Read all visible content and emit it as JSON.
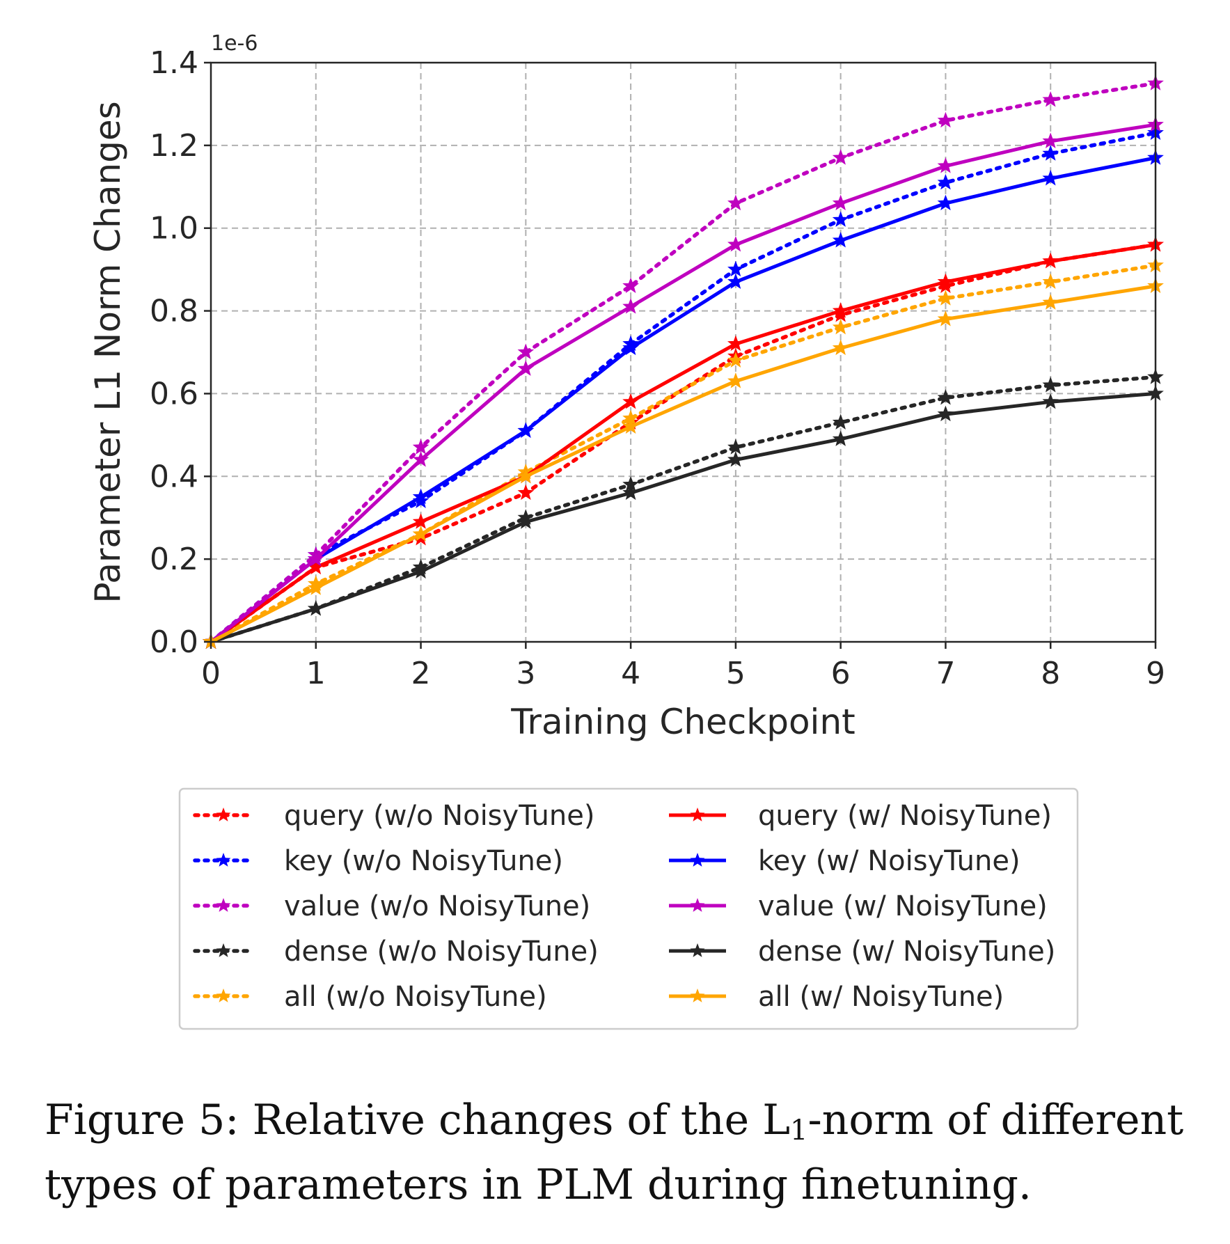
{
  "chart_data": {
    "type": "line",
    "xlabel": "Training Checkpoint",
    "ylabel": "Parameter L1 Norm Changes",
    "y_offset_label": "1e-6",
    "xlim": [
      0,
      9
    ],
    "ylim": [
      0,
      1.4
    ],
    "x": [
      0,
      1,
      2,
      3,
      4,
      5,
      6,
      7,
      8,
      9
    ],
    "x_ticks": [
      "0",
      "1",
      "2",
      "3",
      "4",
      "5",
      "6",
      "7",
      "8",
      "9"
    ],
    "y_ticks": [
      "0.0",
      "0.2",
      "0.4",
      "0.6",
      "0.8",
      "1.0",
      "1.2",
      "1.4"
    ],
    "grid": true,
    "legend_position": "below",
    "series": [
      {
        "name": "query (w/o NoisyTune)",
        "color": "#ff0000",
        "style": "dotted",
        "marker": "star",
        "values": [
          0,
          0.18,
          0.25,
          0.36,
          0.53,
          0.69,
          0.79,
          0.86,
          0.92,
          0.96
        ]
      },
      {
        "name": "key (w/o NoisyTune)",
        "color": "#0000ff",
        "style": "dotted",
        "marker": "star",
        "values": [
          0,
          0.21,
          0.34,
          0.51,
          0.72,
          0.9,
          1.02,
          1.11,
          1.18,
          1.23
        ]
      },
      {
        "name": "value (w/o NoisyTune)",
        "color": "#bf00bf",
        "style": "dotted",
        "marker": "star",
        "values": [
          0,
          0.21,
          0.47,
          0.7,
          0.86,
          1.06,
          1.17,
          1.26,
          1.31,
          1.35
        ]
      },
      {
        "name": "dense (w/o NoisyTune)",
        "color": "#262626",
        "style": "dotted",
        "marker": "star",
        "values": [
          0,
          0.08,
          0.18,
          0.3,
          0.38,
          0.47,
          0.53,
          0.59,
          0.62,
          0.64
        ]
      },
      {
        "name": "all (w/o NoisyTune)",
        "color": "#ffa500",
        "style": "dotted",
        "marker": "star",
        "values": [
          0,
          0.14,
          0.26,
          0.41,
          0.54,
          0.68,
          0.76,
          0.83,
          0.87,
          0.91
        ]
      },
      {
        "name": "query (w/ NoisyTune)",
        "color": "#ff0000",
        "style": "solid",
        "marker": "star",
        "values": [
          0,
          0.18,
          0.29,
          0.4,
          0.58,
          0.72,
          0.8,
          0.87,
          0.92,
          0.96
        ]
      },
      {
        "name": "key (w/ NoisyTune)",
        "color": "#0000ff",
        "style": "solid",
        "marker": "star",
        "values": [
          0,
          0.2,
          0.35,
          0.51,
          0.71,
          0.87,
          0.97,
          1.06,
          1.12,
          1.17
        ]
      },
      {
        "name": "value (w/ NoisyTune)",
        "color": "#bf00bf",
        "style": "solid",
        "marker": "star",
        "values": [
          0,
          0.2,
          0.44,
          0.66,
          0.81,
          0.96,
          1.06,
          1.15,
          1.21,
          1.25
        ]
      },
      {
        "name": "dense (w/ NoisyTune)",
        "color": "#262626",
        "style": "solid",
        "marker": "star",
        "values": [
          0,
          0.08,
          0.17,
          0.29,
          0.36,
          0.44,
          0.49,
          0.55,
          0.58,
          0.6
        ]
      },
      {
        "name": "all (w/ NoisyTune)",
        "color": "#ffa500",
        "style": "solid",
        "marker": "star",
        "values": [
          0,
          0.13,
          0.26,
          0.4,
          0.52,
          0.63,
          0.71,
          0.78,
          0.82,
          0.86
        ]
      }
    ]
  },
  "caption": {
    "prefix": "Figure 5: Relative changes of the L",
    "subscript": "1",
    "suffix": "-norm of different types of parameters in PLM during finetuning."
  }
}
